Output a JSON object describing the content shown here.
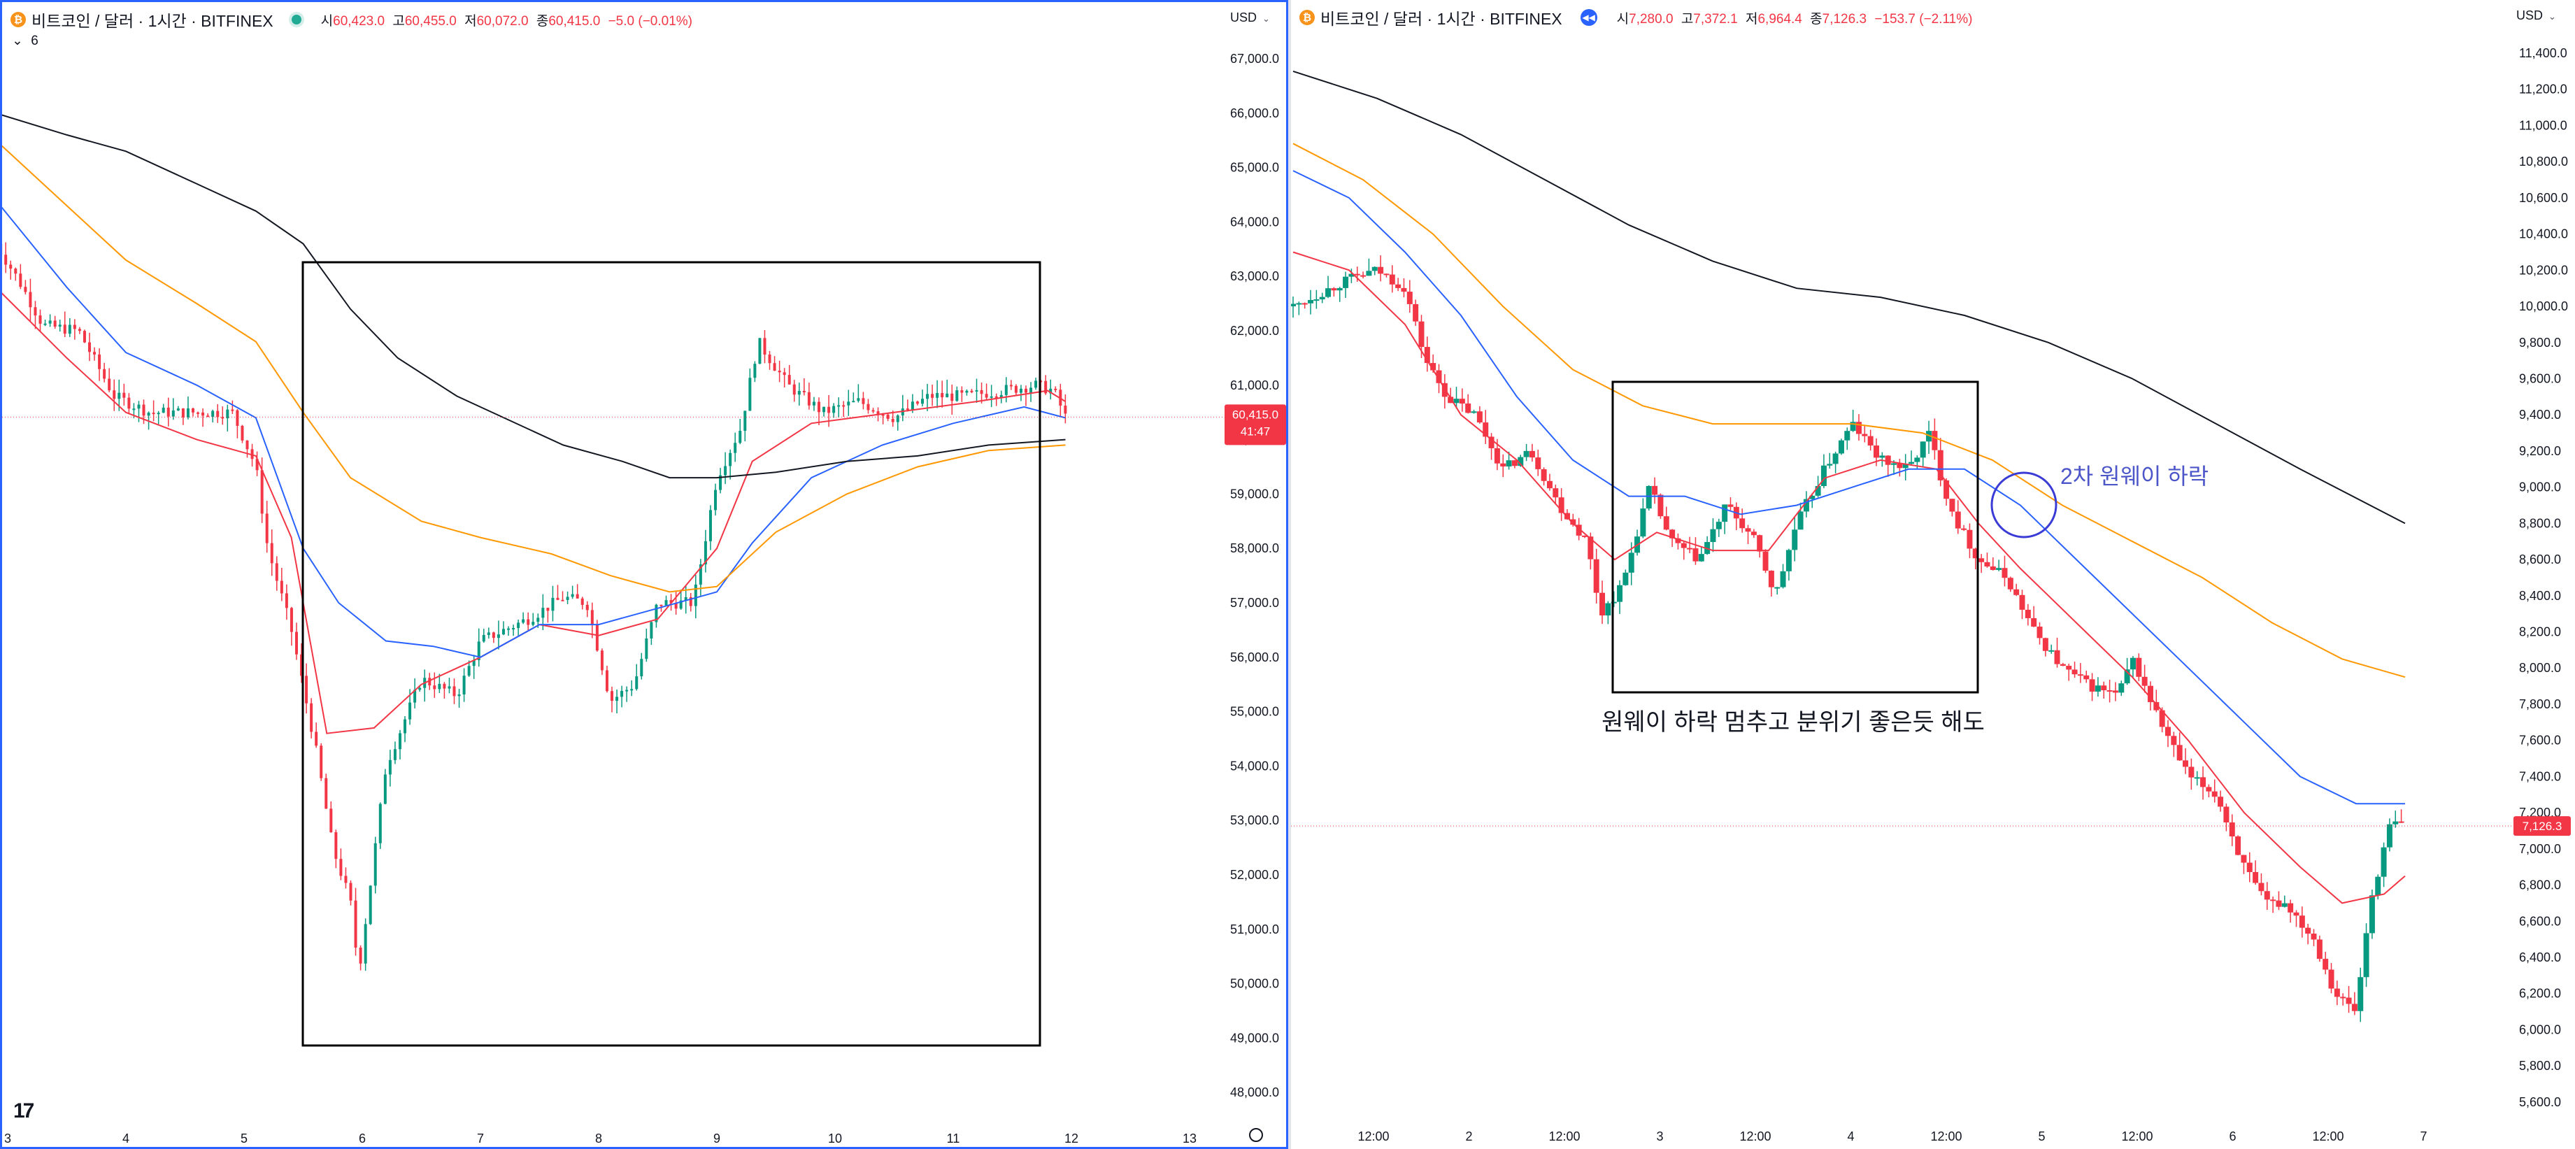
{
  "colors": {
    "up": "#089981",
    "down": "#f23645",
    "ema_fast": "#f23645",
    "ema_mid": "#2962ff",
    "ema_slow": "#ff9800",
    "ema_long": "#131722",
    "annotation_circle": "#3b3bd6",
    "annotation_text": "#4c56c9"
  },
  "left": {
    "title": "비트코인 / 달러 · 1시간 · BITFINEX",
    "ohlc": {
      "o_label": "시",
      "o": "60,423.0",
      "h_label": "고",
      "h": "60,455.0",
      "l_label": "저",
      "l": "60,072.0",
      "c_label": "종",
      "c": "60,415.0",
      "change": "−5.0 (−0.01%)"
    },
    "indicator_toggle": "6",
    "currency": "USD",
    "price_tag": "60,415.0",
    "countdown": "41:47",
    "y_ticks": [
      "67,000.0",
      "66,000.0",
      "65,000.0",
      "64,000.0",
      "63,000.0",
      "62,000.0",
      "61,000.0",
      "60,000.0",
      "59,000.0",
      "58,000.0",
      "57,000.0",
      "56,000.0",
      "55,000.0",
      "54,000.0",
      "53,000.0",
      "52,000.0",
      "51,000.0",
      "50,000.0",
      "49,000.0",
      "48,000.0"
    ],
    "x_ticks": [
      "3",
      "4",
      "5",
      "6",
      "7",
      "8",
      "9",
      "10",
      "11",
      "12",
      "13"
    ],
    "settings_icon": "gear-icon"
  },
  "right": {
    "title": "비트코인 / 달러 · 1시간 · BITFINEX",
    "ohlc": {
      "o_label": "시",
      "o": "7,280.0",
      "h_label": "고",
      "h": "7,372.1",
      "l_label": "저",
      "l": "6,964.4",
      "c_label": "종",
      "c": "7,126.3",
      "change": "−153.7 (−2.11%)"
    },
    "currency": "USD",
    "price_tag": "7,126.3",
    "y_ticks": [
      "11,400.0",
      "11,200.0",
      "11,000.0",
      "10,800.0",
      "10,600.0",
      "10,400.0",
      "10,200.0",
      "10,000.0",
      "9,800.0",
      "9,600.0",
      "9,400.0",
      "9,200.0",
      "9,000.0",
      "8,800.0",
      "8,600.0",
      "8,400.0",
      "8,200.0",
      "8,000.0",
      "7,800.0",
      "7,600.0",
      "7,400.0",
      "7,200.0",
      "7,000.0",
      "6,800.0",
      "6,600.0",
      "6,400.0",
      "6,200.0",
      "6,000.0",
      "5,800.0",
      "5,600.0"
    ],
    "x_ticks": [
      "12:00",
      "2",
      "12:00",
      "3",
      "12:00",
      "4",
      "12:00",
      "5",
      "12:00",
      "6",
      "12:00",
      "7"
    ],
    "annotation_box_caption": "원웨이 하락 멈추고 분위기 좋은듯 해도",
    "annotation_circle_caption": "2차 원웨이 하락"
  },
  "chart_data": [
    {
      "type": "candlestick",
      "title": "비트코인 / 달러 · 1시간 · BITFINEX",
      "x": [
        "3",
        "4",
        "5",
        "6",
        "7",
        "8",
        "9",
        "10",
        "11",
        "12",
        "13"
      ],
      "ylim": [
        47500,
        67500
      ],
      "last_price": 60415.0,
      "close_path": [
        [
          2.9,
          63600
        ],
        [
          3.1,
          62900
        ],
        [
          3.3,
          62100
        ],
        [
          3.6,
          62000
        ],
        [
          3.9,
          60800
        ],
        [
          4.2,
          60500
        ],
        [
          4.6,
          60500
        ],
        [
          4.9,
          60500
        ],
        [
          5.1,
          59500
        ],
        [
          5.2,
          58000
        ],
        [
          5.4,
          56500
        ],
        [
          5.6,
          54400
        ],
        [
          5.75,
          52500
        ],
        [
          5.9,
          51500
        ],
        [
          5.97,
          50200
        ],
        [
          6.2,
          54000
        ],
        [
          6.5,
          55600
        ],
        [
          6.8,
          55300
        ],
        [
          7.0,
          56300
        ],
        [
          7.4,
          56700
        ],
        [
          7.7,
          57100
        ],
        [
          7.9,
          57000
        ],
        [
          8.1,
          55200
        ],
        [
          8.3,
          55500
        ],
        [
          8.5,
          57000
        ],
        [
          8.8,
          57000
        ],
        [
          9.0,
          59300
        ],
        [
          9.2,
          60200
        ],
        [
          9.35,
          61800
        ],
        [
          9.6,
          61000
        ],
        [
          9.9,
          60500
        ],
        [
          10.2,
          60700
        ],
        [
          10.5,
          60400
        ],
        [
          10.8,
          60800
        ],
        [
          11.1,
          60800
        ],
        [
          11.4,
          60900
        ],
        [
          11.7,
          61000
        ],
        [
          11.85,
          60900
        ],
        [
          11.95,
          60415
        ]
      ],
      "series": [
        {
          "name": "",
          "color": "red",
          "points": [
            [
              2.9,
              62800
            ],
            [
              3.5,
              61500
            ],
            [
              4.0,
              60500
            ],
            [
              4.6,
              60000
            ],
            [
              5.1,
              59700
            ],
            [
              5.4,
              58200
            ],
            [
              5.7,
              54600
            ],
            [
              6.1,
              54700
            ],
            [
              6.5,
              55500
            ],
            [
              7.0,
              56000
            ],
            [
              7.5,
              56600
            ],
            [
              8.0,
              56400
            ],
            [
              8.5,
              56700
            ],
            [
              9.0,
              58000
            ],
            [
              9.3,
              59600
            ],
            [
              9.8,
              60300
            ],
            [
              10.5,
              60500
            ],
            [
              11.2,
              60700
            ],
            [
              11.8,
              60900
            ],
            [
              11.95,
              60700
            ]
          ]
        },
        {
          "name": "",
          "color": "blue",
          "points": [
            [
              2.9,
              64400
            ],
            [
              3.5,
              62800
            ],
            [
              4.0,
              61600
            ],
            [
              4.6,
              61000
            ],
            [
              5.1,
              60400
            ],
            [
              5.5,
              58000
            ],
            [
              5.8,
              57000
            ],
            [
              6.2,
              56300
            ],
            [
              6.6,
              56200
            ],
            [
              7.0,
              56000
            ],
            [
              7.5,
              56600
            ],
            [
              8.0,
              56600
            ],
            [
              8.5,
              56900
            ],
            [
              9.0,
              57200
            ],
            [
              9.3,
              58100
            ],
            [
              9.8,
              59300
            ],
            [
              10.4,
              59900
            ],
            [
              11.0,
              60300
            ],
            [
              11.6,
              60600
            ],
            [
              11.95,
              60400
            ]
          ]
        },
        {
          "name": "",
          "color": "orange",
          "points": [
            [
              2.9,
              65500
            ],
            [
              3.5,
              64300
            ],
            [
              4.0,
              63300
            ],
            [
              4.6,
              62500
            ],
            [
              5.1,
              61800
            ],
            [
              5.5,
              60500
            ],
            [
              5.9,
              59300
            ],
            [
              6.5,
              58500
            ],
            [
              7.0,
              58200
            ],
            [
              7.6,
              57900
            ],
            [
              8.1,
              57500
            ],
            [
              8.6,
              57200
            ],
            [
              9.0,
              57300
            ],
            [
              9.5,
              58300
            ],
            [
              10.1,
              59000
            ],
            [
              10.7,
              59500
            ],
            [
              11.3,
              59800
            ],
            [
              11.95,
              59900
            ]
          ]
        },
        {
          "name": "",
          "color": "black",
          "points": [
            [
              2.9,
              66000
            ],
            [
              3.5,
              65600
            ],
            [
              4.0,
              65300
            ],
            [
              4.6,
              64700
            ],
            [
              5.1,
              64200
            ],
            [
              5.5,
              63600
            ],
            [
              5.9,
              62400
            ],
            [
              6.3,
              61500
            ],
            [
              6.8,
              60800
            ],
            [
              7.2,
              60400
            ],
            [
              7.7,
              59900
            ],
            [
              8.2,
              59600
            ],
            [
              8.6,
              59300
            ],
            [
              9.0,
              59300
            ],
            [
              9.5,
              59400
            ],
            [
              10.1,
              59600
            ],
            [
              10.7,
              59700
            ],
            [
              11.3,
              59900
            ],
            [
              11.95,
              60000
            ]
          ]
        }
      ]
    },
    {
      "type": "candlestick",
      "title": "비트코인 / 달러 · 1시간 · BITFINEX",
      "x": [
        "12:00",
        "2",
        "12:00",
        "3",
        "12:00",
        "4",
        "12:00",
        "5",
        "12:00",
        "6",
        "12:00",
        "7"
      ],
      "ylim": [
        5500,
        11500
      ],
      "last_price": 7126.3,
      "close_path": [
        [
          0.0,
          10000
        ],
        [
          0.4,
          10150
        ],
        [
          0.6,
          10200
        ],
        [
          0.8,
          10100
        ],
        [
          0.95,
          9700
        ],
        [
          1.1,
          9500
        ],
        [
          1.3,
          9400
        ],
        [
          1.5,
          9100
        ],
        [
          1.7,
          9200
        ],
        [
          1.9,
          8900
        ],
        [
          2.1,
          8700
        ],
        [
          2.2,
          8300
        ],
        [
          2.35,
          8450
        ],
        [
          2.55,
          9000
        ],
        [
          2.7,
          8700
        ],
        [
          2.9,
          8600
        ],
        [
          3.1,
          8900
        ],
        [
          3.3,
          8700
        ],
        [
          3.45,
          8400
        ],
        [
          3.6,
          8800
        ],
        [
          3.8,
          9100
        ],
        [
          4.0,
          9350
        ],
        [
          4.2,
          9150
        ],
        [
          4.4,
          9100
        ],
        [
          4.55,
          9300
        ],
        [
          4.65,
          9000
        ],
        [
          4.75,
          8800
        ],
        [
          4.9,
          8600
        ],
        [
          5.1,
          8500
        ],
        [
          5.3,
          8200
        ],
        [
          5.5,
          8000
        ],
        [
          5.7,
          7900
        ],
        [
          5.9,
          7850
        ],
        [
          6.0,
          8050
        ],
        [
          6.2,
          7700
        ],
        [
          6.4,
          7400
        ],
        [
          6.6,
          7300
        ],
        [
          6.8,
          6900
        ],
        [
          6.95,
          6700
        ],
        [
          7.1,
          6700
        ],
        [
          7.3,
          6500
        ],
        [
          7.45,
          6200
        ],
        [
          7.6,
          6100
        ],
        [
          7.7,
          6700
        ],
        [
          7.85,
          7150
        ],
        [
          7.95,
          7126
        ]
      ],
      "series": [
        {
          "name": "",
          "color": "red",
          "points": [
            [
              0.0,
              10300
            ],
            [
              0.4,
              10200
            ],
            [
              0.8,
              9900
            ],
            [
              1.2,
              9400
            ],
            [
              1.6,
              9150
            ],
            [
              2.0,
              8800
            ],
            [
              2.3,
              8600
            ],
            [
              2.6,
              8750
            ],
            [
              3.0,
              8650
            ],
            [
              3.4,
              8650
            ],
            [
              3.8,
              9050
            ],
            [
              4.2,
              9150
            ],
            [
              4.6,
              9100
            ],
            [
              4.9,
              8800
            ],
            [
              5.2,
              8550
            ],
            [
              5.6,
              8250
            ],
            [
              6.0,
              7950
            ],
            [
              6.4,
              7600
            ],
            [
              6.8,
              7200
            ],
            [
              7.2,
              6900
            ],
            [
              7.5,
              6700
            ],
            [
              7.8,
              6750
            ],
            [
              7.95,
              6850
            ]
          ]
        },
        {
          "name": "",
          "color": "blue",
          "points": [
            [
              0.0,
              10750
            ],
            [
              0.4,
              10600
            ],
            [
              0.8,
              10300
            ],
            [
              1.2,
              9950
            ],
            [
              1.6,
              9500
            ],
            [
              2.0,
              9150
            ],
            [
              2.4,
              8950
            ],
            [
              2.8,
              8950
            ],
            [
              3.2,
              8850
            ],
            [
              3.6,
              8900
            ],
            [
              4.0,
              9000
            ],
            [
              4.4,
              9100
            ],
            [
              4.8,
              9100
            ],
            [
              5.2,
              8900
            ],
            [
              5.6,
              8600
            ],
            [
              6.0,
              8300
            ],
            [
              6.4,
              8000
            ],
            [
              6.8,
              7700
            ],
            [
              7.2,
              7400
            ],
            [
              7.6,
              7250
            ],
            [
              7.95,
              7250
            ]
          ]
        },
        {
          "name": "",
          "color": "orange",
          "points": [
            [
              0.0,
              10900
            ],
            [
              0.5,
              10700
            ],
            [
              1.0,
              10400
            ],
            [
              1.5,
              10000
            ],
            [
              2.0,
              9650
            ],
            [
              2.5,
              9450
            ],
            [
              3.0,
              9350
            ],
            [
              3.5,
              9350
            ],
            [
              4.0,
              9350
            ],
            [
              4.5,
              9300
            ],
            [
              5.0,
              9150
            ],
            [
              5.5,
              8900
            ],
            [
              6.0,
              8700
            ],
            [
              6.5,
              8500
            ],
            [
              7.0,
              8250
            ],
            [
              7.5,
              8050
            ],
            [
              7.95,
              7950
            ]
          ]
        },
        {
          "name": "",
          "color": "black",
          "points": [
            [
              0.0,
              11300
            ],
            [
              0.6,
              11150
            ],
            [
              1.2,
              10950
            ],
            [
              1.8,
              10700
            ],
            [
              2.4,
              10450
            ],
            [
              3.0,
              10250
            ],
            [
              3.6,
              10100
            ],
            [
              4.2,
              10050
            ],
            [
              4.8,
              9950
            ],
            [
              5.4,
              9800
            ],
            [
              6.0,
              9600
            ],
            [
              6.6,
              9350
            ],
            [
              7.2,
              9100
            ],
            [
              7.95,
              8800
            ]
          ]
        }
      ]
    }
  ]
}
